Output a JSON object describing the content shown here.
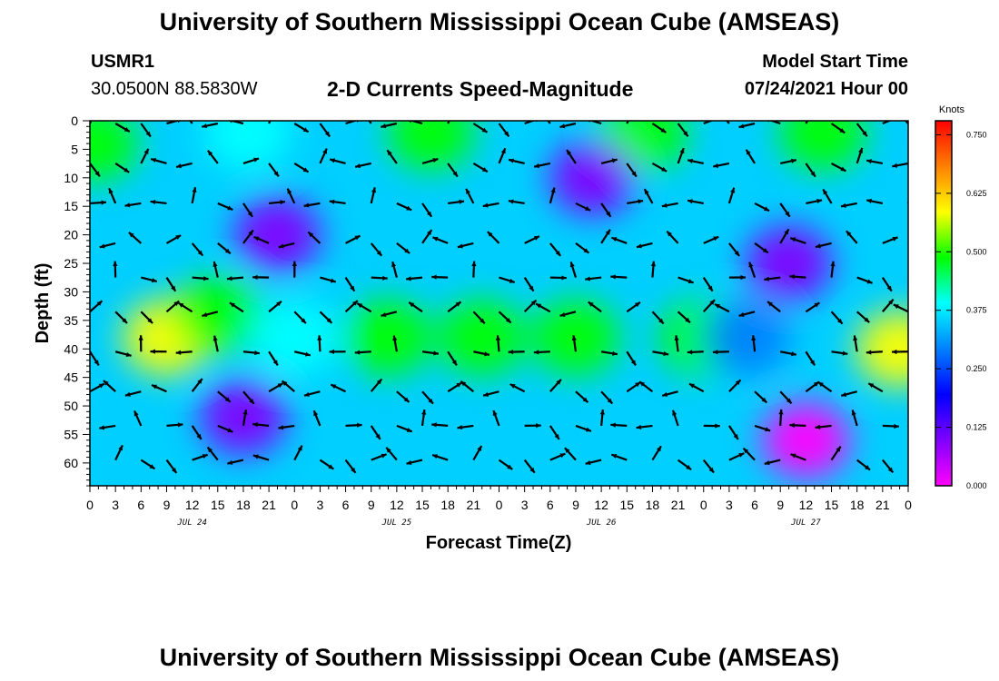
{
  "title": "University of Southern Mississippi Ocean Cube (AMSEAS)",
  "footer_title": "University of Southern Mississippi Ocean Cube (AMSEAS)",
  "station": {
    "name": "USMR1",
    "coords": "30.0500N  88.5830W"
  },
  "model": {
    "label": "Model Start Time",
    "start": "07/24/2021 Hour 00"
  },
  "chart_data": {
    "type": "heatmap",
    "title": "2-D Currents Speed-Magnitude",
    "xlabel": "Forecast Time(Z)",
    "ylabel": "Depth (ft)",
    "x_tick_labels": [
      "0",
      "3",
      "6",
      "9",
      "12",
      "15",
      "18",
      "21",
      "0",
      "3",
      "6",
      "9",
      "12",
      "15",
      "18",
      "21",
      "0",
      "3",
      "6",
      "9",
      "12",
      "15",
      "18",
      "21",
      "0",
      "3",
      "6",
      "9",
      "12",
      "15",
      "18",
      "21",
      "0"
    ],
    "x_hours_range": [
      0,
      96
    ],
    "day_labels": [
      {
        "label": "JUL 24",
        "hour": 12
      },
      {
        "label": "JUL 25",
        "hour": 36
      },
      {
        "label": "JUL 26",
        "hour": 60
      },
      {
        "label": "JUL 27",
        "hour": 84
      }
    ],
    "y_ticks": [
      0,
      5,
      10,
      15,
      20,
      25,
      30,
      35,
      40,
      45,
      50,
      55,
      60
    ],
    "ylim": [
      0,
      64
    ],
    "y_inverted": true,
    "colorbar": {
      "unit": "Knots",
      "range": [
        0.0,
        0.78
      ],
      "ticks": [
        "0.750",
        "0.625",
        "0.500",
        "0.375",
        "0.250",
        "0.125",
        "0.000"
      ],
      "colormap": [
        "#ff00ff",
        "#8000ff",
        "#0000ff",
        "#0080ff",
        "#00ffff",
        "#00ff00",
        "#ffff00",
        "#ff8000",
        "#ff0000"
      ]
    },
    "speed_hotspots_knots": [
      {
        "hour": 0.5,
        "depth": 4,
        "speed": 0.5
      },
      {
        "hour": 9,
        "depth": 38,
        "speed": 0.58
      },
      {
        "hour": 15,
        "depth": 34,
        "speed": 0.5
      },
      {
        "hour": 18.5,
        "depth": 2,
        "speed": 0.35
      },
      {
        "hour": 24,
        "depth": 38,
        "speed": 0.4
      },
      {
        "hour": 35,
        "depth": 38,
        "speed": 0.5
      },
      {
        "hour": 40,
        "depth": 2,
        "speed": 0.5
      },
      {
        "hour": 46,
        "depth": 38,
        "speed": 0.5
      },
      {
        "hour": 57,
        "depth": 38,
        "speed": 0.46
      },
      {
        "hour": 65,
        "depth": 2,
        "speed": 0.48
      },
      {
        "hour": 72,
        "depth": 38,
        "speed": 0.52
      },
      {
        "hour": 77,
        "depth": 38,
        "speed": 0.3
      },
      {
        "hour": 86,
        "depth": 2,
        "speed": 0.5
      },
      {
        "hour": 95,
        "depth": 40,
        "speed": 0.55
      },
      {
        "hour": 84,
        "depth": 56,
        "speed": 0.0
      },
      {
        "hour": 59,
        "depth": 10,
        "speed": 0.05
      },
      {
        "hour": 82,
        "depth": 25,
        "speed": 0.05
      },
      {
        "hour": 22,
        "depth": 20,
        "speed": 0.1
      },
      {
        "hour": 18,
        "depth": 52,
        "speed": 0.05
      }
    ]
  }
}
